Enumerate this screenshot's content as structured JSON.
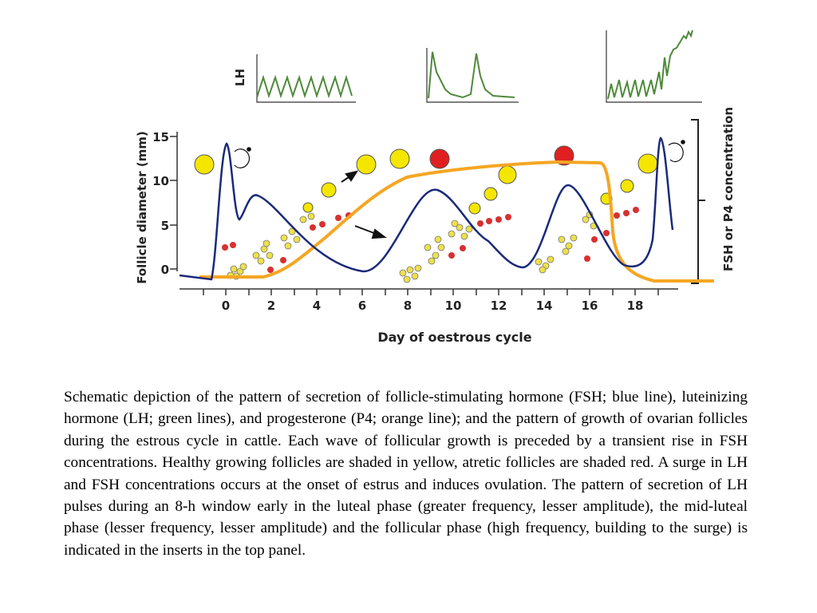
{
  "figure": {
    "lh_label": "LH",
    "y_axis_label": "Follicle diameter (mm)",
    "y_ticks": [
      "0",
      "5",
      "10",
      "15"
    ],
    "x_ticks": [
      "0",
      "2",
      "4",
      "6",
      "8",
      "10",
      "12",
      "14",
      "16",
      "18"
    ],
    "x_axis_label": "Day of oestrous cycle",
    "right_axis_label": "FSH or P4 concentration"
  },
  "caption": "Schematic depiction of the pattern of secretion of follicle-stimulating hormone (FSH; blue line), luteinizing hormone (LH; green lines), and progesterone (P4; orange line); and the pattern of growth of ovarian follicles during the estrous cycle in cattle. Each wave of follicular growth is preceded by a transient rise in FSH concentrations. Healthy growing follicles are shaded in yellow, atretic follicles are shaded red. A surge in LH and FSH concentrations occurs at the onset of estrus and induces ovulation. The pattern of secretion of LH pulses during an 8-h window early in the luteal phase (greater frequency, lesser amplitude), the mid-luteal phase (lesser frequency, lesser amplitude) and the follicular phase (high frequency, building to the surge) is indicated in the inserts in the top panel."
}
